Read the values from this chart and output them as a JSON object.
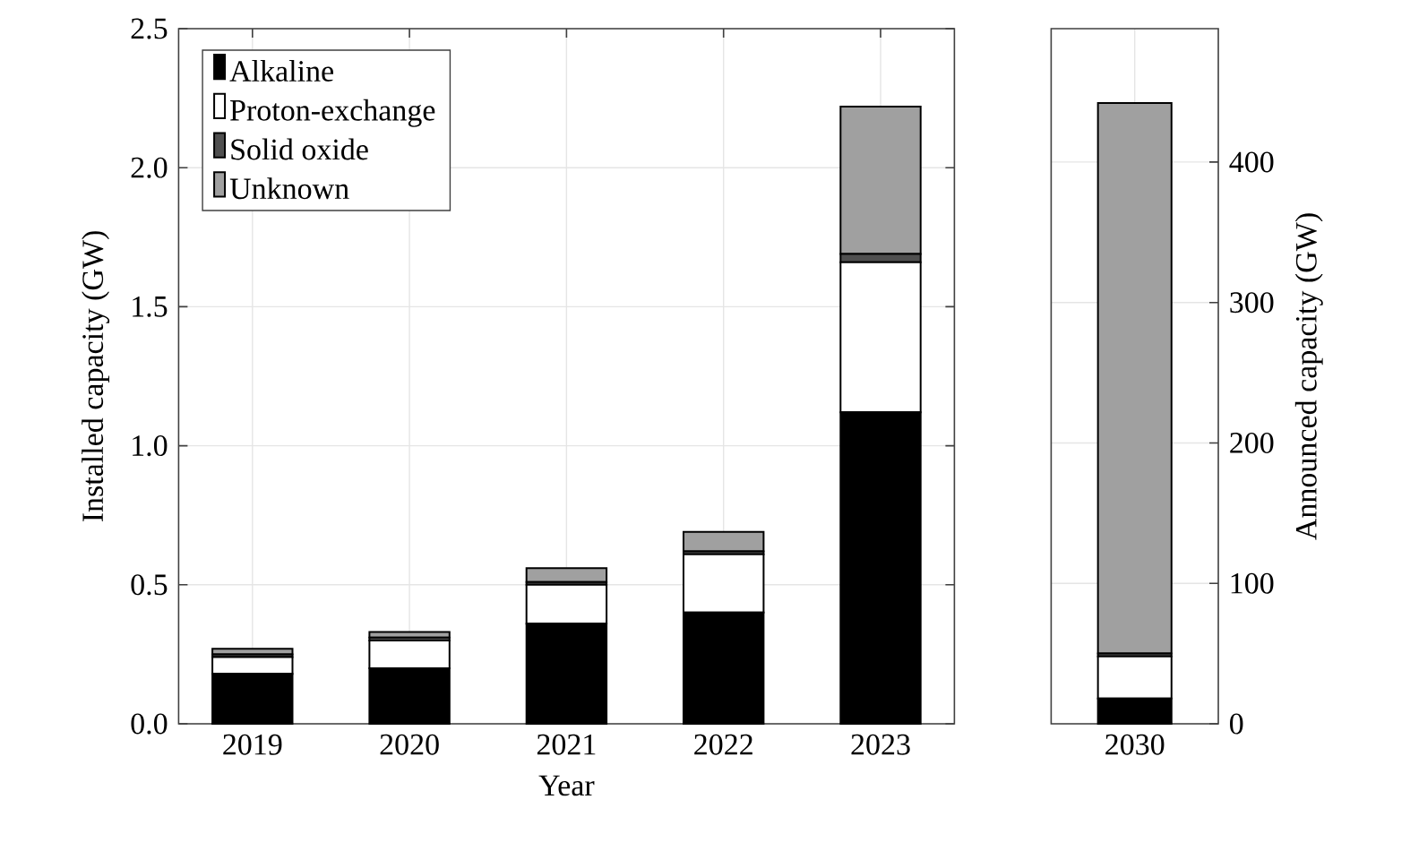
{
  "chart_data": [
    {
      "type": "bar",
      "xlabel": "Year",
      "ylabel": "Installed capacity (GW)",
      "categories": [
        "2019",
        "2020",
        "2021",
        "2022",
        "2023"
      ],
      "stacked": true,
      "ylim": [
        0,
        2.5
      ],
      "yticks": [
        {
          "value": 0,
          "label": "0.0"
        },
        0.5,
        {
          "value": 1,
          "label": "1.0"
        },
        1.5,
        {
          "value": 2,
          "label": "2.0"
        },
        2.5
      ],
      "grid": true,
      "legend": "top left",
      "series": [
        {
          "name": "Alkaline",
          "color": "#000000",
          "values": [
            0.18,
            0.2,
            0.36,
            0.4,
            1.12
          ]
        },
        {
          "name": "Proton-exchange",
          "color": "#ffffff",
          "values": [
            0.06,
            0.1,
            0.14,
            0.21,
            0.54
          ]
        },
        {
          "name": "Solid oxide",
          "color": "#505050",
          "values": [
            0.01,
            0.01,
            0.01,
            0.01,
            0.03
          ]
        },
        {
          "name": "Unknown",
          "color": "#a0a0a0",
          "values": [
            0.02,
            0.02,
            0.05,
            0.07,
            0.53
          ]
        }
      ]
    },
    {
      "type": "bar",
      "ylabel": "Announced capacity (GW)",
      "categories": [
        "2030"
      ],
      "stacked": true,
      "ylim": [
        0,
        495
      ],
      "yticks": [
        0,
        100,
        200,
        300,
        400
      ],
      "grid": true,
      "series": [
        {
          "color": "#000000",
          "values": [
            18
          ]
        },
        {
          "color": "#ffffff",
          "values": [
            30
          ]
        },
        {
          "color": "#505050",
          "values": [
            2
          ]
        },
        {
          "color": "#a0a0a0",
          "values": [
            392
          ]
        }
      ]
    }
  ]
}
